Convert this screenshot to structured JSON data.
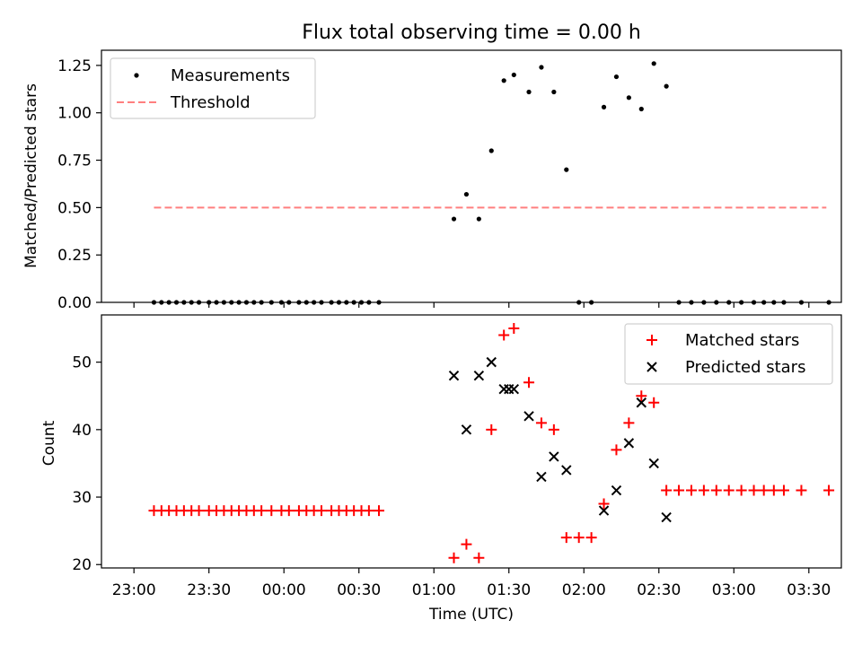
{
  "chart_data": [
    {
      "type": "scatter",
      "title": "Flux total observing time = 0.00 h",
      "xlabel": "",
      "ylabel": "Matched/Predicted stars",
      "ylim": [
        0,
        1.33
      ],
      "yticks": [
        "0.00",
        "0.25",
        "0.50",
        "0.75",
        "1.00",
        "1.25"
      ],
      "legend": {
        "placement": "top-left",
        "entries": [
          "Measurements",
          "Threshold"
        ]
      },
      "series": [
        {
          "name": "Measurements",
          "marker": "dot",
          "color": "#000000",
          "x": [
            "23:08",
            "23:11",
            "23:14",
            "23:17",
            "23:20",
            "23:23",
            "23:26",
            "23:30",
            "23:33",
            "23:36",
            "23:39",
            "23:42",
            "23:45",
            "23:48",
            "23:51",
            "23:55",
            "23:59",
            "00:02",
            "00:06",
            "00:09",
            "00:12",
            "00:15",
            "00:19",
            "00:22",
            "00:25",
            "00:28",
            "00:31",
            "00:34",
            "00:38",
            "01:08",
            "01:13",
            "01:18",
            "01:23",
            "01:28",
            "01:32",
            "01:38",
            "01:43",
            "01:48",
            "01:53",
            "01:58",
            "02:03",
            "02:08",
            "02:13",
            "02:18",
            "02:23",
            "02:28",
            "02:33",
            "02:38",
            "02:43",
            "02:48",
            "02:53",
            "02:58",
            "03:03",
            "03:08",
            "03:12",
            "03:16",
            "03:20",
            "03:27",
            "03:38"
          ],
          "y": [
            0,
            0,
            0,
            0,
            0,
            0,
            0,
            0,
            0,
            0,
            0,
            0,
            0,
            0,
            0,
            0,
            0,
            0,
            0,
            0,
            0,
            0,
            0,
            0,
            0,
            0,
            0,
            0,
            0,
            0.44,
            0.57,
            0.44,
            0.8,
            1.17,
            1.2,
            1.11,
            1.24,
            1.11,
            0.7,
            0,
            0,
            1.03,
            1.19,
            1.08,
            1.02,
            1.26,
            1.14,
            0,
            0,
            0,
            0,
            0,
            0,
            0,
            0,
            0,
            0,
            0,
            0
          ]
        },
        {
          "name": "Threshold",
          "style": "dashed",
          "color": "#ff7f7f",
          "x": [
            "23:08",
            "03:37"
          ],
          "y": [
            0.5,
            0.5
          ]
        }
      ]
    },
    {
      "type": "scatter",
      "title": "",
      "xlabel": "Time (UTC)",
      "ylabel": "Count",
      "ylim": [
        19.5,
        57
      ],
      "yticks": [
        "20",
        "30",
        "40",
        "50"
      ],
      "xticks": [
        "23:00",
        "23:30",
        "00:00",
        "00:30",
        "01:00",
        "01:30",
        "02:00",
        "02:30",
        "03:00",
        "03:30"
      ],
      "legend": {
        "placement": "top-right",
        "entries": [
          "Matched stars",
          "Predicted stars"
        ]
      },
      "series": [
        {
          "name": "Matched stars",
          "marker": "plus",
          "color": "#ff0000",
          "x": [
            "23:08",
            "23:11",
            "23:14",
            "23:17",
            "23:20",
            "23:23",
            "23:26",
            "23:30",
            "23:33",
            "23:36",
            "23:39",
            "23:42",
            "23:45",
            "23:48",
            "23:51",
            "23:55",
            "23:59",
            "00:02",
            "00:06",
            "00:09",
            "00:12",
            "00:15",
            "00:19",
            "00:22",
            "00:25",
            "00:28",
            "00:31",
            "00:34",
            "00:38",
            "01:08",
            "01:13",
            "01:18",
            "01:23",
            "01:28",
            "01:32",
            "01:38",
            "01:43",
            "01:48",
            "01:53",
            "01:58",
            "02:03",
            "02:08",
            "02:13",
            "02:18",
            "02:23",
            "02:28",
            "02:33",
            "02:38",
            "02:43",
            "02:48",
            "02:53",
            "02:58",
            "03:03",
            "03:08",
            "03:12",
            "03:16",
            "03:20",
            "03:27",
            "03:38"
          ],
          "y": [
            28,
            28,
            28,
            28,
            28,
            28,
            28,
            28,
            28,
            28,
            28,
            28,
            28,
            28,
            28,
            28,
            28,
            28,
            28,
            28,
            28,
            28,
            28,
            28,
            28,
            28,
            28,
            28,
            28,
            21,
            23,
            21,
            40,
            54,
            55,
            47,
            41,
            40,
            24,
            24,
            24,
            29,
            37,
            41,
            45,
            44,
            31,
            31,
            31,
            31,
            31,
            31,
            31,
            31,
            31,
            31,
            31,
            31,
            31
          ]
        },
        {
          "name": "Predicted stars",
          "marker": "x",
          "color": "#000000",
          "x": [
            "01:08",
            "01:13",
            "01:18",
            "01:23",
            "01:28",
            "01:30",
            "01:32",
            "01:38",
            "01:43",
            "01:48",
            "01:53",
            "02:08",
            "02:13",
            "02:18",
            "02:23",
            "02:28",
            "02:33"
          ],
          "y": [
            48,
            40,
            48,
            50,
            46,
            46,
            46,
            42,
            33,
            36,
            34,
            28,
            31,
            38,
            44,
            35,
            27
          ]
        }
      ]
    }
  ]
}
